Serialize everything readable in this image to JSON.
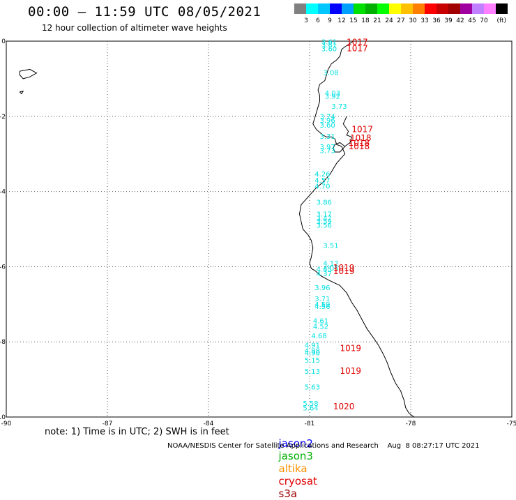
{
  "header": {
    "title": "00:00 – 11:59 UTC 08/05/2021",
    "subtitle": "12 hour collection of altimeter wave heights"
  },
  "colorbar": {
    "unit_label": "(ft)",
    "colors": [
      "#808080",
      "#00ffff",
      "#00c8ff",
      "#0000ff",
      "#00a0ff",
      "#00e000",
      "#00b000",
      "#00ff00",
      "#ffff00",
      "#ffc000",
      "#ff8000",
      "#ff0000",
      "#c80000",
      "#a00000",
      "#a000a0",
      "#c080ff",
      "#ff80ff",
      "#000000"
    ],
    "tick_labels": [
      "3",
      "6",
      "9",
      "12",
      "15",
      "18",
      "21",
      "24",
      "27",
      "30",
      "33",
      "36",
      "39",
      "42",
      "45",
      "70"
    ]
  },
  "map": {
    "x_ticks": [
      "-90",
      "-87",
      "-84",
      "-81",
      "-78",
      "-75"
    ],
    "y_ticks": [
      "0",
      "-2",
      "-4",
      "-6",
      "-8",
      "-10"
    ],
    "lon_range": [
      -90,
      -75
    ],
    "lat_range": [
      -10,
      0
    ],
    "swh_color": "#00e0e0",
    "pressure_color": "#e00000",
    "swh_labels": [
      {
        "lon": -80.65,
        "lat": -0.08,
        "text": "3.61"
      },
      {
        "lon": -80.65,
        "lat": -0.17,
        "text": "3.61"
      },
      {
        "lon": -80.65,
        "lat": -0.27,
        "text": "3.60"
      },
      {
        "lon": -80.6,
        "lat": -0.9,
        "text": "3.08"
      },
      {
        "lon": -80.55,
        "lat": -1.45,
        "text": "4.03"
      },
      {
        "lon": -80.55,
        "lat": -1.53,
        "text": "3.92"
      },
      {
        "lon": -80.35,
        "lat": -1.8,
        "text": "3.73"
      },
      {
        "lon": -80.7,
        "lat": -2.07,
        "text": "3.74"
      },
      {
        "lon": -80.7,
        "lat": -2.17,
        "text": "3.96"
      },
      {
        "lon": -80.7,
        "lat": -2.3,
        "text": "3.60"
      },
      {
        "lon": -80.7,
        "lat": -2.6,
        "text": "3.31"
      },
      {
        "lon": -80.7,
        "lat": -2.88,
        "text": "3.97"
      },
      {
        "lon": -80.7,
        "lat": -2.98,
        "text": "3.73"
      },
      {
        "lon": -80.85,
        "lat": -3.6,
        "text": "4.26"
      },
      {
        "lon": -80.85,
        "lat": -3.77,
        "text": "4.57"
      },
      {
        "lon": -80.85,
        "lat": -3.92,
        "text": "4.70"
      },
      {
        "lon": -80.8,
        "lat": -4.35,
        "text": "3.86"
      },
      {
        "lon": -80.8,
        "lat": -4.67,
        "text": "3.17"
      },
      {
        "lon": -80.8,
        "lat": -4.78,
        "text": "3.47"
      },
      {
        "lon": -80.8,
        "lat": -4.86,
        "text": "3.59"
      },
      {
        "lon": -80.8,
        "lat": -4.96,
        "text": "3.56"
      },
      {
        "lon": -80.6,
        "lat": -5.5,
        "text": "3.51"
      },
      {
        "lon": -80.6,
        "lat": -5.97,
        "text": "4.12"
      },
      {
        "lon": -80.6,
        "lat": -6.1,
        "text": "4.05"
      },
      {
        "lon": -80.8,
        "lat": -6.13,
        "text": "4.45"
      },
      {
        "lon": -80.8,
        "lat": -6.25,
        "text": "4.37"
      },
      {
        "lon": -80.85,
        "lat": -6.62,
        "text": "3.96"
      },
      {
        "lon": -80.85,
        "lat": -6.92,
        "text": "3.71"
      },
      {
        "lon": -80.85,
        "lat": -7.07,
        "text": "4.59"
      },
      {
        "lon": -80.85,
        "lat": -7.12,
        "text": "4.56"
      },
      {
        "lon": -80.9,
        "lat": -7.5,
        "text": "4.61"
      },
      {
        "lon": -80.9,
        "lat": -7.65,
        "text": "4.52"
      },
      {
        "lon": -80.95,
        "lat": -7.9,
        "text": "4.68"
      },
      {
        "lon": -81.15,
        "lat": -8.15,
        "text": "4.91"
      },
      {
        "lon": -81.15,
        "lat": -8.3,
        "text": "4.98"
      },
      {
        "lon": -81.15,
        "lat": -8.36,
        "text": "4.90"
      },
      {
        "lon": -81.15,
        "lat": -8.55,
        "text": "5.15"
      },
      {
        "lon": -81.15,
        "lat": -8.85,
        "text": "5.13"
      },
      {
        "lon": -81.15,
        "lat": -9.27,
        "text": "5.63"
      },
      {
        "lon": -81.2,
        "lat": -9.7,
        "text": "5.58"
      },
      {
        "lon": -81.2,
        "lat": -9.82,
        "text": "5.64"
      }
    ],
    "pressure_labels": [
      {
        "lon": -79.9,
        "lat": -0.1,
        "text": "1017"
      },
      {
        "lon": -79.9,
        "lat": -0.27,
        "text": "1017"
      },
      {
        "lon": -79.75,
        "lat": -2.42,
        "text": "1017"
      },
      {
        "lon": -79.8,
        "lat": -2.65,
        "text": "1018"
      },
      {
        "lon": -79.85,
        "lat": -2.78,
        "text": "1018"
      },
      {
        "lon": -79.85,
        "lat": -2.88,
        "text": "1018"
      },
      {
        "lon": -80.3,
        "lat": -6.1,
        "text": "1019"
      },
      {
        "lon": -80.3,
        "lat": -6.2,
        "text": "1019"
      },
      {
        "lon": -80.1,
        "lat": -8.25,
        "text": "1019"
      },
      {
        "lon": -80.1,
        "lat": -8.85,
        "text": "1019"
      },
      {
        "lon": -80.3,
        "lat": -9.8,
        "text": "1020"
      }
    ],
    "coastline": [
      [
        -79.7,
        0.0
      ],
      [
        -79.95,
        -0.15
      ],
      [
        -80.05,
        -0.22
      ],
      [
        -80.1,
        -0.4
      ],
      [
        -80.2,
        -0.5
      ],
      [
        -80.35,
        -0.6
      ],
      [
        -80.45,
        -0.75
      ],
      [
        -80.5,
        -0.9
      ],
      [
        -80.55,
        -1.05
      ],
      [
        -80.7,
        -1.15
      ],
      [
        -80.75,
        -1.3
      ],
      [
        -80.7,
        -1.45
      ],
      [
        -80.7,
        -1.6
      ],
      [
        -80.75,
        -1.75
      ],
      [
        -80.8,
        -1.9
      ],
      [
        -80.85,
        -2.05
      ],
      [
        -80.9,
        -2.2
      ],
      [
        -80.8,
        -2.35
      ],
      [
        -80.6,
        -2.5
      ],
      [
        -80.5,
        -2.55
      ],
      [
        -80.35,
        -2.55
      ],
      [
        -80.25,
        -2.6
      ],
      [
        -80.2,
        -2.75
      ],
      [
        -80.05,
        -2.8
      ],
      [
        -79.95,
        -3.0
      ],
      [
        -80.05,
        -3.1
      ],
      [
        -80.2,
        -3.25
      ],
      [
        -80.3,
        -3.4
      ],
      [
        -80.4,
        -3.55
      ],
      [
        -80.6,
        -3.75
      ],
      [
        -80.8,
        -3.9
      ],
      [
        -80.95,
        -4.05
      ],
      [
        -81.1,
        -4.2
      ],
      [
        -81.25,
        -4.35
      ],
      [
        -81.3,
        -4.6
      ],
      [
        -81.25,
        -4.8
      ],
      [
        -81.2,
        -5.0
      ],
      [
        -81.05,
        -5.15
      ],
      [
        -80.95,
        -5.3
      ],
      [
        -80.9,
        -5.5
      ],
      [
        -80.95,
        -5.75
      ],
      [
        -81.0,
        -5.9
      ],
      [
        -80.95,
        -6.05
      ],
      [
        -80.85,
        -6.1
      ],
      [
        -80.65,
        -6.25
      ],
      [
        -80.45,
        -6.35
      ],
      [
        -80.1,
        -6.5
      ],
      [
        -79.9,
        -6.7
      ],
      [
        -79.75,
        -6.95
      ],
      [
        -79.6,
        -7.15
      ],
      [
        -79.45,
        -7.4
      ],
      [
        -79.3,
        -7.65
      ],
      [
        -79.1,
        -7.9
      ],
      [
        -78.95,
        -8.1
      ],
      [
        -78.8,
        -8.35
      ],
      [
        -78.7,
        -8.55
      ],
      [
        -78.6,
        -8.8
      ],
      [
        -78.45,
        -9.1
      ],
      [
        -78.3,
        -9.3
      ],
      [
        -78.2,
        -9.55
      ],
      [
        -78.15,
        -9.75
      ],
      [
        -78.05,
        -9.9
      ],
      [
        -77.9,
        -10.0
      ]
    ],
    "gulf_coast": [
      [
        -79.9,
        -2.0
      ],
      [
        -80.0,
        -2.2
      ],
      [
        -79.85,
        -2.4
      ],
      [
        -79.9,
        -2.5
      ],
      [
        -79.75,
        -2.55
      ],
      [
        -79.8,
        -2.7
      ],
      [
        -79.95,
        -2.8
      ]
    ],
    "puna_island": [
      [
        -80.25,
        -2.75
      ],
      [
        -80.1,
        -2.7
      ],
      [
        -79.95,
        -2.8
      ],
      [
        -80.1,
        -2.95
      ],
      [
        -80.25,
        -2.95
      ],
      [
        -80.3,
        -2.85
      ],
      [
        -80.25,
        -2.75
      ]
    ],
    "islands": [
      [
        [
          -89.6,
          -0.8
        ],
        [
          -89.3,
          -0.75
        ],
        [
          -89.1,
          -0.85
        ],
        [
          -89.3,
          -0.95
        ],
        [
          -89.5,
          -1.0
        ],
        [
          -89.6,
          -0.9
        ],
        [
          -89.6,
          -0.8
        ]
      ],
      [
        [
          -89.6,
          -1.35
        ],
        [
          -89.5,
          -1.33
        ],
        [
          -89.55,
          -1.4
        ],
        [
          -89.6,
          -1.35
        ]
      ]
    ]
  },
  "notes": {
    "note_text": "note: 1) Time is in UTC; 2) SWH is in feet",
    "footer": "NOAA/NESDIS Center for Satellite Applications and Research    Aug  8 08:27:17 UTC 2021"
  },
  "legend": {
    "items": [
      {
        "label": "jason2",
        "color": "#0000ff"
      },
      {
        "label": "jason3",
        "color": "#00b000"
      },
      {
        "label": "altika",
        "color": "#ff9000"
      },
      {
        "label": "cryosat",
        "color": "#e00000"
      },
      {
        "label": "s3a",
        "color": "#a00000"
      }
    ]
  }
}
